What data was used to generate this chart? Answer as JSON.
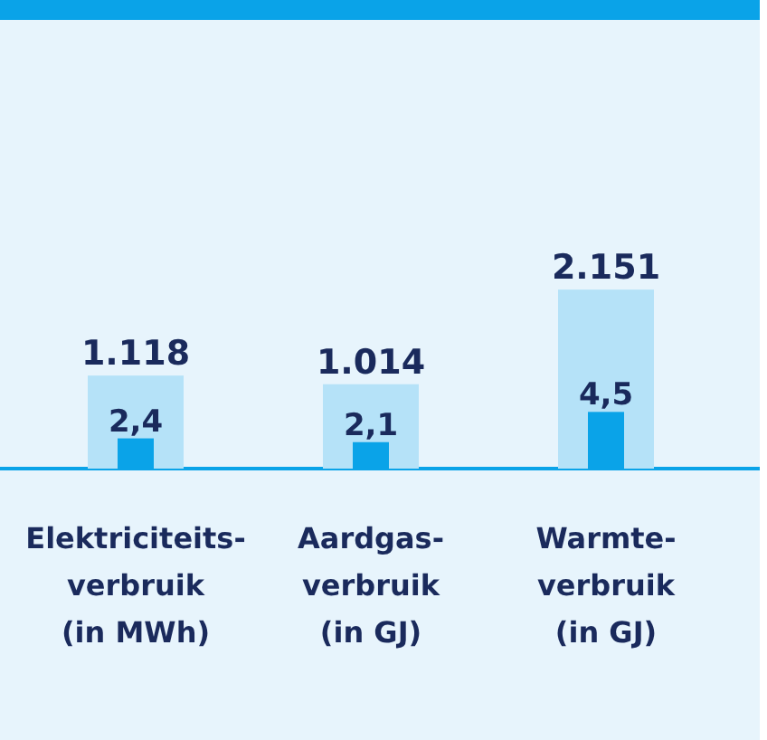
{
  "chart_data": {
    "type": "bar",
    "categories": [
      "Elektriciteits-\nverbruik\n(in MWh)",
      "Aardgas-\nverbruik\n(in GJ)",
      "Warmte-\nverbruik\n(in GJ)"
    ],
    "series": [
      {
        "color": "#b5e2f8",
        "values": [
          1118,
          1014,
          2151
        ],
        "value_labels": [
          "1.118",
          "1.014",
          "2.151"
        ]
      },
      {
        "color": "#0aa3e8",
        "values": [
          2.4,
          2.1,
          4.5
        ],
        "value_labels": [
          "2,4",
          "2,1",
          "4,5"
        ],
        "axis": "y2"
      }
    ]
  }
}
